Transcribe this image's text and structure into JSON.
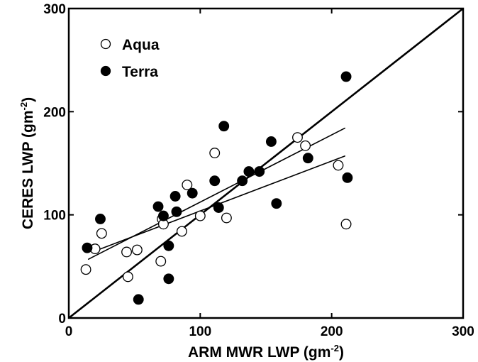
{
  "chart_data": {
    "type": "scatter",
    "title": "",
    "xlabel": {
      "text": "ARM MWR LWP (gm",
      "sup": "-2",
      "suffix": ")"
    },
    "ylabel": {
      "text": "CERES LWP (gm",
      "sup": "-2",
      "suffix": ")"
    },
    "xlim": [
      0,
      300
    ],
    "ylim": [
      0,
      300
    ],
    "xticks": [
      0,
      100,
      200,
      300
    ],
    "yticks": [
      0,
      100,
      200,
      300
    ],
    "grid": false,
    "legend_placement": "top-left",
    "series": [
      {
        "name": "Aqua",
        "marker": "open-circle",
        "points": [
          [
            13,
            47
          ],
          [
            20,
            67
          ],
          [
            25,
            82
          ],
          [
            44,
            64
          ],
          [
            45,
            40
          ],
          [
            52,
            66
          ],
          [
            70,
            55
          ],
          [
            71,
            96
          ],
          [
            72,
            91
          ],
          [
            86,
            84
          ],
          [
            90,
            129
          ],
          [
            100,
            99
          ],
          [
            111,
            160
          ],
          [
            120,
            97
          ],
          [
            174,
            175
          ],
          [
            180,
            167
          ],
          [
            205,
            148
          ],
          [
            211,
            91
          ]
        ]
      },
      {
        "name": "Terra",
        "marker": "filled-circle",
        "points": [
          [
            14,
            68
          ],
          [
            24,
            96
          ],
          [
            53,
            18
          ],
          [
            68,
            108
          ],
          [
            72,
            99
          ],
          [
            76,
            70
          ],
          [
            76,
            38
          ],
          [
            81,
            118
          ],
          [
            82,
            103
          ],
          [
            94,
            121
          ],
          [
            111,
            133
          ],
          [
            114,
            107
          ],
          [
            118,
            186
          ],
          [
            132,
            133
          ],
          [
            137,
            142
          ],
          [
            145,
            142
          ],
          [
            154,
            171
          ],
          [
            158,
            111
          ],
          [
            182,
            155
          ],
          [
            211,
            234
          ],
          [
            212,
            136
          ]
        ]
      }
    ],
    "lines": [
      {
        "kind": "one-to-one",
        "x": [
          0,
          300
        ],
        "y": [
          0,
          300
        ],
        "width": 2.6
      },
      {
        "kind": "fit",
        "x": [
          15,
          210
        ],
        "y": [
          57,
          184
        ],
        "width": 1.6
      },
      {
        "kind": "fit",
        "x": [
          18,
          210
        ],
        "y": [
          64,
          157
        ],
        "width": 1.6
      }
    ]
  }
}
